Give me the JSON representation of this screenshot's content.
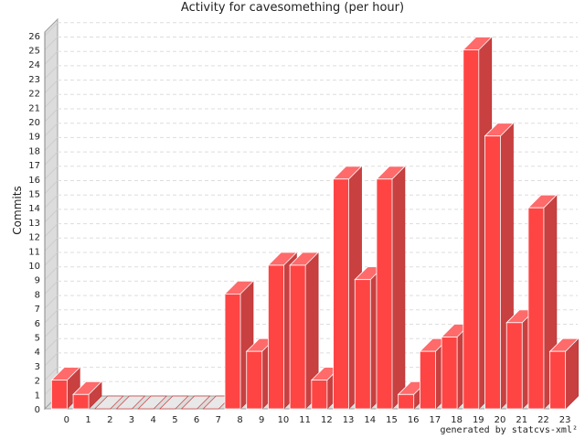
{
  "chart_data": {
    "type": "bar",
    "title": "Activity for cavesomething (per hour)",
    "xlabel": "",
    "ylabel": "Commits",
    "categories": [
      "0",
      "1",
      "2",
      "3",
      "4",
      "5",
      "6",
      "7",
      "8",
      "9",
      "10",
      "11",
      "12",
      "13",
      "14",
      "15",
      "16",
      "17",
      "18",
      "19",
      "20",
      "21",
      "22",
      "23"
    ],
    "values": [
      2,
      1,
      0,
      0,
      0,
      0,
      0,
      0,
      8,
      4,
      10,
      10,
      2,
      16,
      9,
      16,
      1,
      4,
      5,
      25,
      19,
      6,
      14,
      4
    ],
    "ylim": [
      0,
      26
    ],
    "yticks": [
      "0",
      "1",
      "2",
      "3",
      "4",
      "5",
      "6",
      "7",
      "8",
      "9",
      "10",
      "11",
      "12",
      "13",
      "14",
      "15",
      "16",
      "17",
      "18",
      "19",
      "20",
      "21",
      "22",
      "23",
      "24",
      "25",
      "26"
    ],
    "grid": true,
    "bar_color": "#ff4444",
    "bar_side_color": "#c84040",
    "bar_top_color": "#ff6a6a"
  },
  "footer": "generated by statcvs-xml²"
}
